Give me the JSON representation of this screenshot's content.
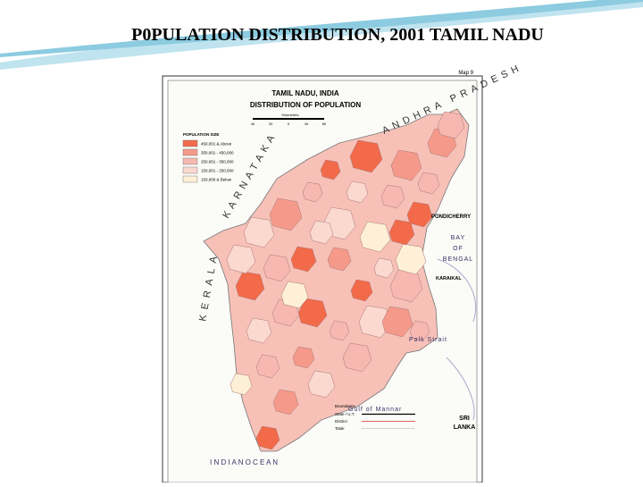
{
  "title": "P0PULATION  DISTRIBUTION, 2001 TAMIL NADU",
  "map": {
    "plate": "Map 9",
    "heading": "TAMIL NADU, INDIA",
    "subheading": "DISTRIBUTION OF POPULATION",
    "scale": {
      "unit": "Kilometres",
      "ticks": [
        "40",
        "20",
        "0",
        "40",
        "80"
      ]
    },
    "legend": {
      "title": "POPULATION SIZE",
      "items": [
        {
          "label": "450,001 & Above",
          "color": "#f26a4a"
        },
        {
          "label": "350,001 - 450,000",
          "color": "#f59a8a"
        },
        {
          "label": "250,001 - 350,000",
          "color": "#f7b8b2"
        },
        {
          "label": "150,001 - 250,000",
          "color": "#fbd9cf"
        },
        {
          "label": "150,000 & Below",
          "color": "#fdf0d6"
        }
      ]
    },
    "boundaries": {
      "title": "Boundaries",
      "items": [
        "State / U.T.",
        "District",
        "Taluk"
      ]
    },
    "places": {
      "andhra": "ANDHRA PRADESH",
      "karnataka": "KARNATAKA",
      "kerala": "KERALA",
      "pondicherry": "PONDICHERRY",
      "bay1": "BAY",
      "bay2": "OF",
      "bay3": "BENGAL",
      "karaikal": "KARAIKAL",
      "palk": "Palk Strait",
      "mannar": "Gulf of Mannar",
      "srilanka1": "SRI",
      "srilanka2": "LANKA",
      "ocean": "I N D I A N          O C E A N"
    }
  }
}
